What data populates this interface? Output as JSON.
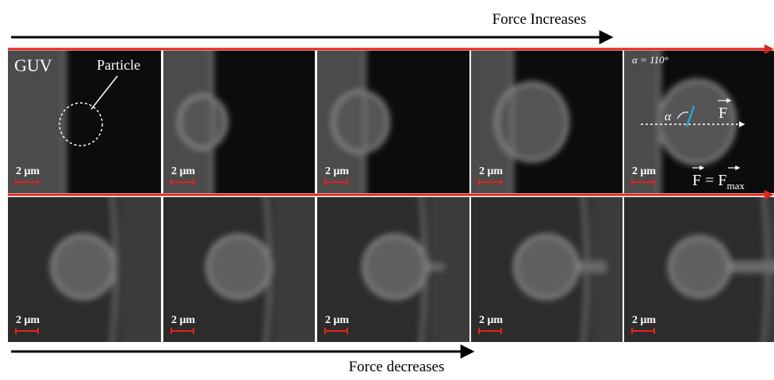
{
  "header": {
    "top_label": "Force Increases",
    "bottom_label": "Force decreases"
  },
  "annotations": {
    "guv": "GUV",
    "particle": "Particle",
    "angle": "α = 110°",
    "alpha": "α",
    "force": "F",
    "force_eq": "F = F",
    "force_sub": "max"
  },
  "panels": [
    {
      "scale": "2 μm"
    },
    {
      "scale": "2 μm"
    },
    {
      "scale": "2 μm"
    },
    {
      "scale": "2 μm"
    },
    {
      "scale": "2 μm"
    },
    {
      "scale": "2 μm"
    },
    {
      "scale": "2 μm"
    },
    {
      "scale": "2 μm"
    },
    {
      "scale": "2 μm"
    },
    {
      "scale": "2 μm"
    }
  ]
}
